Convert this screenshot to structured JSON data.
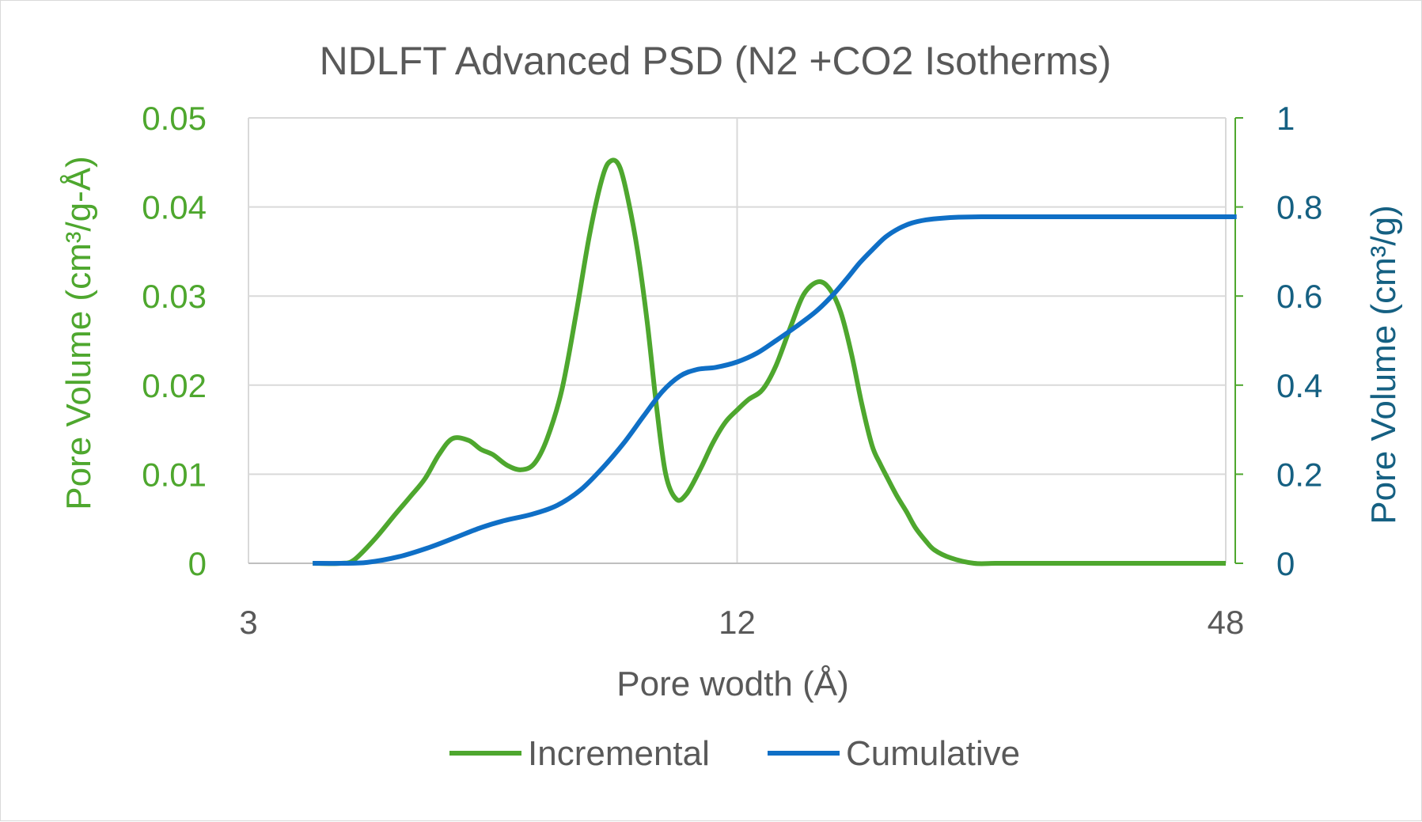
{
  "chart_data": {
    "type": "line",
    "title": "NDLFT Advanced PSD (N2 +CO2 Isotherms)",
    "xlabel": "Pore wodth (Å)",
    "ylabel_left": "Pore Volume (cm³/g-Å)",
    "ylabel_right": "Pore Volume (cm³/g)",
    "x_scale": "log",
    "xlim": [
      3,
      48
    ],
    "x_ticks": [
      "3",
      "12",
      "48"
    ],
    "ylim_left": [
      0,
      0.05
    ],
    "y_ticks_left": [
      "0",
      "0.01",
      "0.02",
      "0.03",
      "0.04",
      "0.05"
    ],
    "ylim_right": [
      0,
      1
    ],
    "y_ticks_right": [
      "0",
      "0.2",
      "0.4",
      "0.6",
      "0.8",
      "1"
    ],
    "legend_position": "bottom",
    "colors": {
      "incremental": "#4ea72e",
      "cumulative": "#0f6fc6",
      "right_axis_text": "#156082"
    },
    "series": [
      {
        "name": "Incremental",
        "axis": "left",
        "x": [
          3.6,
          3.9,
          4.05,
          4.3,
          4.55,
          4.75,
          4.95,
          5.15,
          5.35,
          5.6,
          5.8,
          6.0,
          6.25,
          6.5,
          6.75,
          7.0,
          7.3,
          7.6,
          7.9,
          8.2,
          8.4,
          8.6,
          8.8,
          9.05,
          9.3,
          9.55,
          9.8,
          10.1,
          10.4,
          10.8,
          11.2,
          11.6,
          12.0,
          12.4,
          12.9,
          13.4,
          14.0,
          14.5,
          15.1,
          15.6,
          16.1,
          16.6,
          17.1,
          17.6,
          18.0,
          18.4,
          18.9,
          19.4,
          19.9,
          20.5,
          21.0,
          22.0,
          23.5,
          25.0,
          26.5,
          28.5,
          31.0,
          34.0,
          38.0,
          42.0,
          48.0
        ],
        "values": [
          0,
          0,
          0.0004,
          0.0028,
          0.0055,
          0.0075,
          0.0095,
          0.0122,
          0.014,
          0.0138,
          0.0128,
          0.0122,
          0.011,
          0.0105,
          0.0112,
          0.014,
          0.0195,
          0.028,
          0.037,
          0.0435,
          0.0452,
          0.0445,
          0.041,
          0.035,
          0.027,
          0.0175,
          0.01,
          0.0072,
          0.0078,
          0.0105,
          0.0135,
          0.0158,
          0.0172,
          0.0184,
          0.0195,
          0.0222,
          0.0268,
          0.0302,
          0.0316,
          0.0308,
          0.0282,
          0.0235,
          0.0178,
          0.0132,
          0.0112,
          0.0095,
          0.0075,
          0.0058,
          0.004,
          0.0025,
          0.0015,
          0.0006,
          0,
          0,
          0,
          0,
          0,
          0,
          0,
          0,
          0
        ]
      },
      {
        "name": "Cumulative",
        "axis": "right",
        "x": [
          3.6,
          3.9,
          4.2,
          4.6,
          5.0,
          5.4,
          5.8,
          6.2,
          6.7,
          7.2,
          7.7,
          8.2,
          8.7,
          9.2,
          9.7,
          10.2,
          10.7,
          11.3,
          12.0,
          12.7,
          13.4,
          14.2,
          15.0,
          15.7,
          16.4,
          17.0,
          17.7,
          18.3,
          19.0,
          19.7,
          20.5,
          21.5,
          22.5,
          24.0,
          26.0,
          28.0,
          31.0,
          35.0,
          40.0,
          44.0,
          48.0,
          49.5
        ],
        "values": [
          0,
          0,
          0.002,
          0.015,
          0.035,
          0.058,
          0.08,
          0.096,
          0.11,
          0.13,
          0.165,
          0.215,
          0.27,
          0.33,
          0.385,
          0.42,
          0.435,
          0.44,
          0.452,
          0.472,
          0.5,
          0.532,
          0.565,
          0.6,
          0.64,
          0.675,
          0.708,
          0.733,
          0.752,
          0.764,
          0.771,
          0.775,
          0.777,
          0.778,
          0.778,
          0.778,
          0.778,
          0.778,
          0.778,
          0.778,
          0.778,
          0.778
        ]
      }
    ]
  }
}
